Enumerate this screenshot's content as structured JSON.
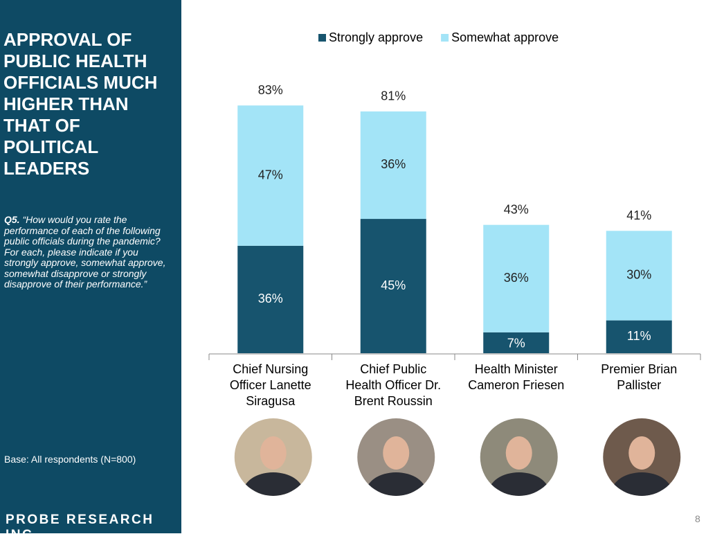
{
  "slide": {
    "title": "APPROVAL OF PUBLIC HEALTH OFFICIALS MUCH HIGHER THAN THAT OF POLITICAL LEADERS",
    "question_label": "Q5.",
    "question_text": "“How would you rate the performance of each of the following public officials during the pandemic? For each, please indicate if you strongly approve, somewhat approve, somewhat disapprove or strongly disapprove of their performance.”",
    "base": "Base: All respondents (N=800)",
    "logo": "PROBE RESEARCH INC.",
    "page_number": "8"
  },
  "chart_data": {
    "type": "stacked_bar",
    "categories": [
      "Chief Nursing Officer Lanette Siragusa",
      "Chief Public Health Officer Dr. Brent Roussin",
      "Health Minister Cameron Friesen",
      "Premier Brian Pallister"
    ],
    "series": [
      {
        "name": "Strongly approve",
        "color": "#17546e",
        "values": [
          36,
          45,
          7,
          11
        ],
        "value_labels": [
          "36%",
          "45%",
          "7%",
          "11%"
        ]
      },
      {
        "name": "Somewhat approve",
        "color": "#a3e4f7",
        "values": [
          47,
          36,
          36,
          30
        ],
        "value_labels": [
          "47%",
          "36%",
          "36%",
          "30%"
        ]
      }
    ],
    "totals": [
      83,
      81,
      43,
      41
    ],
    "total_labels": [
      "83%",
      "81%",
      "43%",
      "41%"
    ],
    "legend": "top"
  }
}
